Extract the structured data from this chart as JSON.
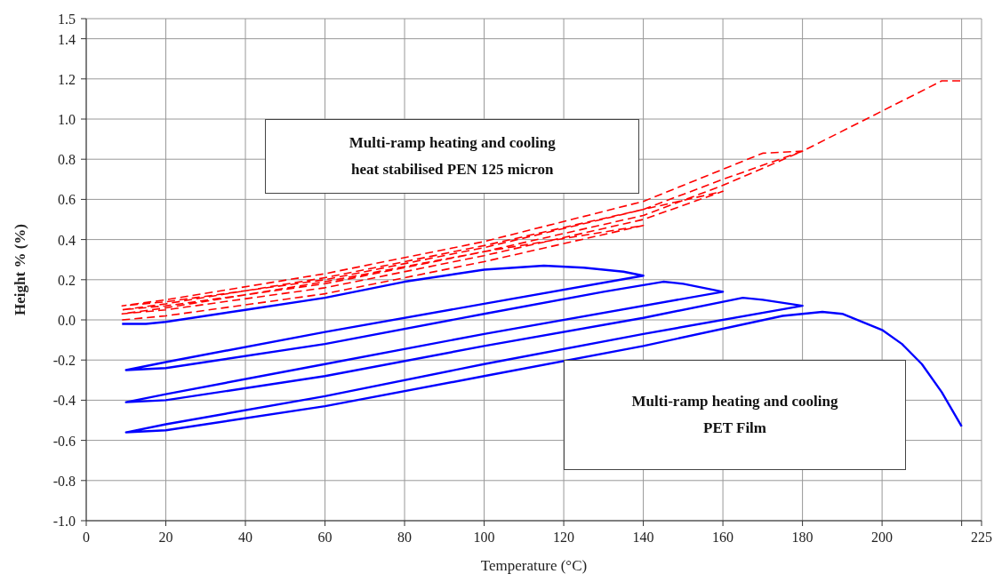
{
  "chart_data": {
    "type": "line",
    "xlabel": "Temperature (°C)",
    "ylabel": "Height % (%)",
    "xlim": [
      0,
      225
    ],
    "xticks": [
      0,
      20,
      40,
      60,
      80,
      100,
      120,
      140,
      160,
      180,
      200,
      {
        "value": 220,
        "label": null
      },
      225
    ],
    "ylim": [
      -1,
      1.5
    ],
    "yticks": [
      {
        "value": -1,
        "label": "-1.0"
      },
      {
        "value": -0.8,
        "label": "-0.8"
      },
      {
        "value": -0.6,
        "label": "-0.6"
      },
      {
        "value": -0.4,
        "label": "-0.4"
      },
      {
        "value": -0.2,
        "label": "-0.2"
      },
      {
        "value": 0,
        "label": "0.0"
      },
      {
        "value": 0.2,
        "label": "0.2"
      },
      {
        "value": 0.4,
        "label": "0.4"
      },
      {
        "value": 0.6,
        "label": "0.6"
      },
      {
        "value": 0.8,
        "label": "0.8"
      },
      {
        "value": 1,
        "label": "1.0"
      },
      {
        "value": 1.2,
        "label": "1.2"
      },
      {
        "value": 1.4,
        "label": "1.4"
      },
      {
        "value": 1.5,
        "label": "1.5"
      }
    ],
    "grid": true,
    "marker": "none",
    "annotations": [
      "Multi-ramp heating and cooling\nheat stabilised PEN 125 micron",
      "Multi-ramp heating and cooling\nPET Film"
    ],
    "series": [
      {
        "color": "#ff0000",
        "line_style": "dashed",
        "x": [
          9,
          20,
          60,
          100,
          140,
          100,
          60,
          20,
          9,
          20,
          60,
          100,
          140,
          160,
          140,
          100,
          60,
          20,
          9,
          20,
          60,
          100,
          140,
          160,
          180,
          170,
          160,
          140,
          100,
          60,
          20,
          9,
          20,
          60,
          100,
          140,
          160,
          180,
          200,
          215,
          220
        ],
        "values": [
          0.0,
          0.02,
          0.13,
          0.29,
          0.47,
          0.34,
          0.19,
          0.06,
          0.03,
          0.05,
          0.16,
          0.32,
          0.5,
          0.64,
          0.55,
          0.37,
          0.21,
          0.08,
          0.05,
          0.07,
          0.18,
          0.34,
          0.52,
          0.67,
          0.84,
          0.83,
          0.75,
          0.59,
          0.39,
          0.23,
          0.1,
          0.07,
          0.09,
          0.2,
          0.36,
          0.55,
          0.7,
          0.84,
          1.04,
          1.19,
          1.19
        ]
      },
      {
        "color": "#0000ff",
        "line_style": "solid",
        "x": [
          9,
          15,
          20,
          40,
          60,
          80,
          100,
          115,
          125,
          135,
          140,
          100,
          60,
          20,
          10,
          20,
          60,
          100,
          130,
          145,
          150,
          160,
          100,
          60,
          20,
          10,
          20,
          60,
          100,
          140,
          165,
          170,
          180,
          140,
          100,
          60,
          20,
          10,
          20,
          60,
          100,
          140,
          175,
          185,
          190,
          200,
          205,
          210,
          215,
          220
        ],
        "values": [
          -0.02,
          -0.02,
          -0.01,
          0.05,
          0.11,
          0.19,
          0.25,
          0.27,
          0.26,
          0.24,
          0.22,
          0.08,
          -0.06,
          -0.21,
          -0.25,
          -0.24,
          -0.12,
          0.03,
          0.14,
          0.19,
          0.18,
          0.14,
          -0.07,
          -0.22,
          -0.37,
          -0.41,
          -0.4,
          -0.28,
          -0.13,
          0.01,
          0.11,
          0.1,
          0.07,
          -0.07,
          -0.22,
          -0.38,
          -0.52,
          -0.56,
          -0.55,
          -0.43,
          -0.28,
          -0.13,
          0.02,
          0.04,
          0.03,
          -0.05,
          -0.12,
          -0.22,
          -0.36,
          -0.53
        ]
      }
    ]
  }
}
